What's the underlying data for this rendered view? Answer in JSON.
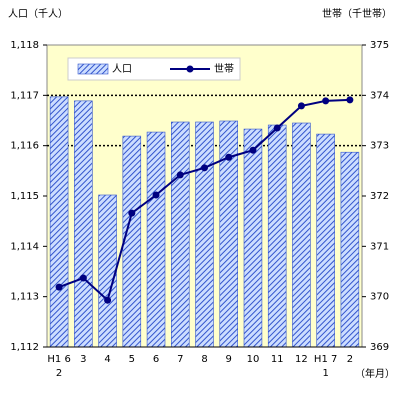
{
  "chart_data": {
    "type": "bar-line",
    "y_title": "人口（千人）",
    "y2_title": "世帯（千世帯）",
    "x_title": "（年月）",
    "categories": [
      "H1 6\n2",
      "3",
      "4",
      "5",
      "6",
      "7",
      "8",
      "9",
      "10",
      "11",
      "12",
      "H1 7\n1",
      "2"
    ],
    "series": [
      {
        "name": "人口",
        "type": "bar",
        "color": "#3355cc",
        "values": [
          1116.97,
          1116.89,
          1115.02,
          1116.19,
          1116.27,
          1116.47,
          1116.47,
          1116.49,
          1116.33,
          1116.41,
          1116.45,
          1116.23,
          1115.87
        ]
      },
      {
        "name": "世帯",
        "type": "line",
        "axis": "y2",
        "color": "#000080",
        "values": [
          370.19,
          370.37,
          369.93,
          371.66,
          372.02,
          372.42,
          372.56,
          372.77,
          372.91,
          373.35,
          373.79,
          373.89,
          373.91
        ]
      }
    ],
    "ylim": [
      1112,
      1118
    ],
    "yticks": [
      {
        "value": 1112,
        "label": "1,112"
      },
      {
        "value": 1113,
        "label": "1,113"
      },
      {
        "value": 1114,
        "label": "1,114"
      },
      {
        "value": 1115,
        "label": "1,115"
      },
      {
        "value": 1116,
        "label": "1,116"
      },
      {
        "value": 1117,
        "label": "1,117"
      },
      {
        "value": 1118,
        "label": "1,118"
      }
    ],
    "y2lim": [
      369,
      375
    ],
    "y2ticks": [
      369,
      370,
      371,
      372,
      373,
      374,
      375
    ],
    "grid_values": [
      1116,
      1117
    ],
    "background": "#ffffcc"
  }
}
